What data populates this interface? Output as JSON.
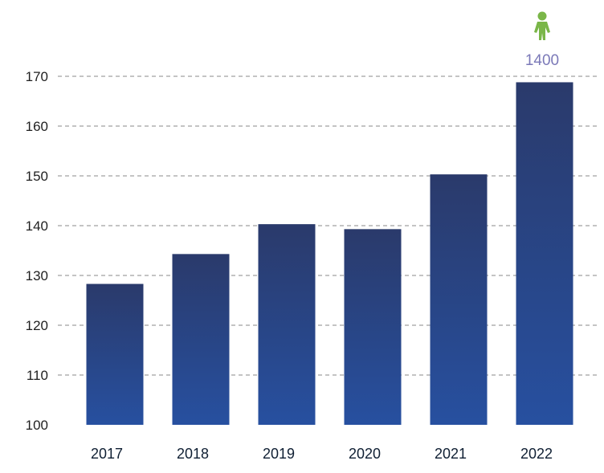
{
  "chart_data": {
    "type": "bar",
    "title": "",
    "xlabel": "",
    "ylabel": "",
    "categories": [
      "2017",
      "2018",
      "2019",
      "2020",
      "2021",
      "2022"
    ],
    "values": [
      128.3,
      134.3,
      140.3,
      139.3,
      150.3,
      168.8
    ],
    "ylim": [
      100,
      170
    ],
    "yticks": [
      100,
      110,
      120,
      130,
      140,
      150,
      160,
      170
    ],
    "grid": true,
    "bar_color_top": "#2a3a6b",
    "bar_color_bottom": "#2750a0",
    "annotation": {
      "category": "2022",
      "text": "1400",
      "icon": "person-icon",
      "icon_color": "#7ab648",
      "text_color": "#7b79b8"
    }
  }
}
